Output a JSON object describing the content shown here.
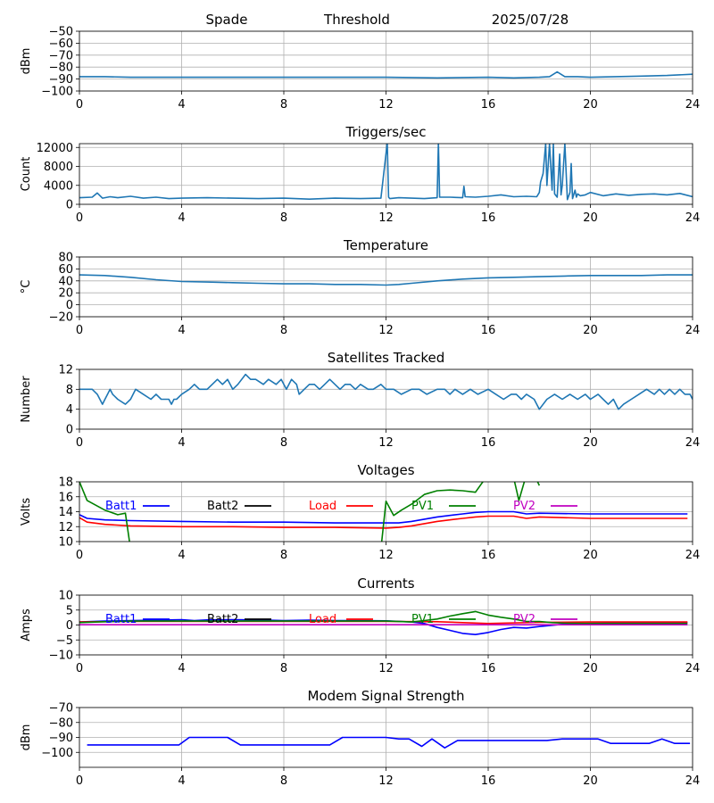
{
  "header": {
    "station": "Spade",
    "mode": "Threshold",
    "date": "2025/07/28"
  },
  "colors": {
    "default": "#1f77b4",
    "batt1": "#0000ff",
    "batt2": "#000000",
    "load": "#ff0000",
    "pv1": "#008000",
    "pv2": "#c000c0"
  },
  "chart_data": [
    {
      "id": "noise",
      "type": "line",
      "title": "",
      "ylabel": "dBm",
      "xlim": [
        0,
        24
      ],
      "ylim": [
        -100,
        -50
      ],
      "xticks": [
        0,
        4,
        8,
        12,
        16,
        20,
        24
      ],
      "yticks": [
        -50,
        -60,
        -70,
        -80,
        -90,
        -100
      ],
      "grid": true,
      "series": [
        {
          "color": "#1f77b4",
          "x": [
            0,
            1,
            2,
            3,
            4,
            6,
            8,
            10,
            12,
            14,
            16,
            17,
            18,
            18.4,
            18.7,
            19,
            19.5,
            20,
            21,
            22,
            23,
            24
          ],
          "y": [
            -88,
            -88,
            -88.5,
            -88.5,
            -88.5,
            -88.5,
            -88.5,
            -88.5,
            -88.5,
            -89,
            -88.5,
            -89,
            -88.5,
            -88,
            -84,
            -88,
            -88,
            -88.5,
            -88,
            -87.5,
            -87,
            -86
          ]
        }
      ]
    },
    {
      "id": "triggers",
      "type": "line",
      "title": "Triggers/sec",
      "ylabel": "Count",
      "xlim": [
        0,
        24
      ],
      "ylim": [
        0,
        12800
      ],
      "xticks": [
        0,
        4,
        8,
        12,
        16,
        20,
        24
      ],
      "yticks": [
        0,
        4000,
        8000,
        12000
      ],
      "grid": true,
      "series": [
        {
          "color": "#1f77b4",
          "x": [
            0,
            0.5,
            0.7,
            0.9,
            1.2,
            1.5,
            2,
            2.5,
            3,
            3.5,
            4,
            5,
            6,
            7,
            8,
            9,
            10,
            11,
            11.8,
            12.05,
            12.1,
            12.15,
            12.5,
            13,
            13.5,
            14,
            14.05,
            14.1,
            14.5,
            15,
            15.05,
            15.1,
            15.5,
            16,
            16.5,
            17,
            17.5,
            17.9,
            18.0,
            18.05,
            18.15,
            18.25,
            18.3,
            18.4,
            18.5,
            18.55,
            18.6,
            18.7,
            18.8,
            18.85,
            18.9,
            19.0,
            19.1,
            19.2,
            19.25,
            19.3,
            19.4,
            19.45,
            19.5,
            19.6,
            19.8,
            20,
            20.5,
            21,
            21.5,
            22,
            22.5,
            23,
            23.5,
            24
          ],
          "y": [
            1400,
            1500,
            2400,
            1300,
            1600,
            1400,
            1700,
            1300,
            1500,
            1200,
            1300,
            1400,
            1300,
            1200,
            1300,
            1100,
            1300,
            1200,
            1300,
            13000,
            1500,
            1200,
            1400,
            1300,
            1200,
            1400,
            13000,
            1500,
            1500,
            1400,
            3800,
            1600,
            1500,
            1700,
            2000,
            1600,
            1700,
            1600,
            2500,
            4700,
            6500,
            12800,
            4000,
            12800,
            3000,
            12800,
            2200,
            1500,
            10600,
            2000,
            4000,
            12800,
            1000,
            2500,
            8600,
            1200,
            3000,
            1500,
            2200,
            1800,
            2000,
            2500,
            1800,
            2200,
            1900,
            2100,
            2200,
            2000,
            2300,
            1600
          ]
        }
      ]
    },
    {
      "id": "temperature",
      "type": "line",
      "title": "Temperature",
      "ylabel": "°C",
      "xlim": [
        0,
        24
      ],
      "ylim": [
        -20,
        80
      ],
      "xticks": [
        0,
        4,
        8,
        12,
        16,
        20,
        24
      ],
      "yticks": [
        -20,
        0,
        20,
        40,
        60,
        80
      ],
      "grid": true,
      "series": [
        {
          "color": "#1f77b4",
          "x": [
            0,
            1,
            2,
            3,
            4,
            5,
            6,
            7,
            8,
            9,
            10,
            11,
            12,
            12.5,
            13,
            14,
            15,
            16,
            17,
            18,
            19,
            20,
            21,
            22,
            23,
            24
          ],
          "y": [
            50,
            49,
            46,
            42,
            39,
            38,
            37,
            36,
            35,
            35,
            34,
            34,
            33,
            34,
            36,
            40,
            43,
            45,
            46,
            47,
            48,
            49,
            49,
            49,
            50,
            50
          ]
        }
      ]
    },
    {
      "id": "satellites",
      "type": "line",
      "title": "Satellites Tracked",
      "ylabel": "Number",
      "xlim": [
        0,
        24
      ],
      "ylim": [
        0,
        12
      ],
      "xticks": [
        0,
        4,
        8,
        12,
        16,
        20,
        24
      ],
      "yticks": [
        0,
        4,
        8,
        12
      ],
      "grid": true,
      "series": [
        {
          "color": "#1f77b4",
          "x": [
            0,
            0.5,
            0.7,
            0.8,
            0.9,
            1,
            1.1,
            1.2,
            1.3,
            1.5,
            1.8,
            2.0,
            2.2,
            2.5,
            2.8,
            3.0,
            3.2,
            3.5,
            3.6,
            3.7,
            3.8,
            4.0,
            4.3,
            4.5,
            4.7,
            5.0,
            5.2,
            5.4,
            5.6,
            5.8,
            6.0,
            6.2,
            6.5,
            6.7,
            6.9,
            7.2,
            7.4,
            7.7,
            7.9,
            8.1,
            8.3,
            8.5,
            8.6,
            8.8,
            9.0,
            9.2,
            9.4,
            9.6,
            9.8,
            10.0,
            10.2,
            10.4,
            10.6,
            10.8,
            11.0,
            11.3,
            11.5,
            11.8,
            12.0,
            12.3,
            12.6,
            13.0,
            13.3,
            13.6,
            14.0,
            14.3,
            14.5,
            14.7,
            15.0,
            15.3,
            15.6,
            16.0,
            16.3,
            16.6,
            16.9,
            17.1,
            17.3,
            17.5,
            17.8,
            18.0,
            18.3,
            18.6,
            18.9,
            19.2,
            19.5,
            19.8,
            20.0,
            20.3,
            20.5,
            20.7,
            20.9,
            21.1,
            21.3,
            21.6,
            21.9,
            22.2,
            22.5,
            22.7,
            22.9,
            23.1,
            23.3,
            23.5,
            23.7,
            23.9,
            24
          ],
          "y": [
            8,
            8,
            7,
            6,
            5,
            6,
            7,
            8,
            7,
            6,
            5,
            6,
            8,
            7,
            6,
            7,
            6,
            6,
            5,
            6,
            6,
            7,
            8,
            9,
            8,
            8,
            9,
            10,
            9,
            10,
            8,
            9,
            11,
            10,
            10,
            9,
            10,
            9,
            10,
            8,
            10,
            9,
            7,
            8,
            9,
            9,
            8,
            9,
            10,
            9,
            8,
            9,
            9,
            8,
            9,
            8,
            8,
            9,
            8,
            8,
            7,
            8,
            8,
            7,
            8,
            8,
            7,
            8,
            7,
            8,
            7,
            8,
            7,
            6,
            7,
            7,
            6,
            7,
            6,
            4,
            6,
            7,
            6,
            7,
            6,
            7,
            6,
            7,
            6,
            5,
            6,
            4,
            5,
            6,
            7,
            8,
            7,
            8,
            7,
            8,
            7,
            8,
            7,
            7,
            6
          ]
        }
      ]
    },
    {
      "id": "voltages",
      "type": "line",
      "title": "Voltages",
      "ylabel": "Volts",
      "xlim": [
        0,
        24
      ],
      "ylim": [
        10,
        18
      ],
      "xticks": [
        0,
        4,
        8,
        12,
        16,
        20,
        24
      ],
      "yticks": [
        10,
        12,
        14,
        16,
        18
      ],
      "grid": true,
      "series": [
        {
          "name": "Batt1",
          "color": "#0000ff",
          "x": [
            0,
            0.3,
            1,
            2,
            4,
            6,
            8,
            10,
            12,
            12.5,
            13,
            14,
            15,
            15.5,
            16,
            17,
            17.5,
            18,
            20,
            22,
            23.8
          ],
          "y": [
            13.6,
            13.1,
            12.9,
            12.8,
            12.7,
            12.6,
            12.6,
            12.5,
            12.5,
            12.5,
            12.7,
            13.3,
            13.7,
            13.9,
            14.0,
            14.0,
            13.7,
            13.8,
            13.7,
            13.7,
            13.7
          ]
        },
        {
          "name": "Batt2",
          "color": "#000000",
          "x": [],
          "y": []
        },
        {
          "name": "Load",
          "color": "#ff0000",
          "x": [
            0,
            0.3,
            1,
            2,
            4,
            6,
            8,
            10,
            12,
            12.5,
            13,
            14,
            15,
            15.5,
            16,
            17,
            17.5,
            18,
            20,
            22,
            23.8
          ],
          "y": [
            13.2,
            12.6,
            12.3,
            12.1,
            12.0,
            12.0,
            11.9,
            11.9,
            11.8,
            11.9,
            12.1,
            12.7,
            13.1,
            13.3,
            13.4,
            13.4,
            13.1,
            13.3,
            13.1,
            13.1,
            13.1
          ]
        },
        {
          "name": "PV1",
          "color": "#008000",
          "x": [
            0,
            0.3,
            1,
            1.5,
            1.8,
            2.0,
            11.8,
            12.0,
            12.3,
            12.6,
            13,
            13.5,
            14,
            14.5,
            15,
            15.5,
            16.0,
            16.5,
            17.0,
            17.2,
            17.5,
            17.8,
            18.0
          ],
          "y": [
            18,
            15.5,
            14.2,
            13.6,
            13.8,
            9.0,
            9.0,
            15.4,
            13.5,
            14.2,
            15.0,
            16.3,
            16.8,
            16.9,
            16.8,
            16.6,
            19.0,
            19.0,
            18.5,
            15.5,
            19.0,
            19.0,
            17.5
          ]
        },
        {
          "name": "PV2",
          "color": "#c000c0",
          "x": [],
          "y": []
        }
      ]
    },
    {
      "id": "currents",
      "type": "line",
      "title": "Currents",
      "ylabel": "Amps",
      "xlim": [
        0,
        24
      ],
      "ylim": [
        -10,
        10
      ],
      "xticks": [
        0,
        4,
        8,
        12,
        16,
        20,
        24
      ],
      "yticks": [
        -10,
        -5,
        0,
        5,
        10
      ],
      "grid": true,
      "series": [
        {
          "name": "Batt1",
          "color": "#0000ff",
          "x": [
            0,
            1,
            2,
            3,
            4,
            4.5,
            5,
            6,
            7,
            8,
            9,
            10,
            11,
            12,
            13,
            13.5,
            14,
            14.5,
            15,
            15.5,
            16,
            16.5,
            17,
            17.5,
            18,
            19,
            20,
            22,
            23.8
          ],
          "y": [
            1.0,
            1.3,
            1.5,
            1.6,
            1.8,
            1.5,
            1.7,
            1.8,
            1.7,
            1.5,
            1.6,
            1.5,
            1.5,
            1.4,
            1.0,
            0.5,
            -0.8,
            -1.8,
            -2.8,
            -3.2,
            -2.5,
            -1.5,
            -0.8,
            -1.0,
            -0.5,
            0.3,
            0.6,
            0.8,
            0.8
          ]
        },
        {
          "name": "Batt2",
          "color": "#000000",
          "x": [],
          "y": []
        },
        {
          "name": "Load",
          "color": "#ff0000",
          "x": [
            0,
            2,
            4,
            6,
            8,
            10,
            12,
            14,
            15,
            16,
            18,
            20,
            22,
            23.8
          ],
          "y": [
            1.0,
            1.2,
            1.2,
            1.2,
            1.2,
            1.2,
            1.2,
            1.1,
            0.8,
            0.5,
            0.9,
            1.0,
            1.0,
            1.0
          ]
        },
        {
          "name": "PV1",
          "color": "#008000",
          "x": [
            0,
            1,
            2,
            3,
            4,
            5,
            6,
            7,
            8,
            9,
            10,
            11,
            12,
            13,
            13.5,
            14,
            14.5,
            15,
            15.5,
            16,
            16.5,
            17,
            17.5,
            18,
            18.5,
            19,
            20,
            22,
            23.8
          ],
          "y": [
            0.8,
            1.1,
            1.3,
            1.3,
            1.3,
            1.3,
            1.3,
            1.3,
            1.3,
            1.3,
            1.3,
            1.3,
            1.3,
            1.0,
            1.5,
            2.0,
            3.0,
            3.8,
            4.5,
            3.3,
            2.6,
            2.0,
            1.2,
            1.2,
            0.8,
            0.6,
            0.5,
            0.5,
            0.5
          ]
        },
        {
          "name": "PV2",
          "color": "#c000c0",
          "x": [
            0,
            4,
            8,
            12,
            16,
            20,
            23.8
          ],
          "y": [
            0.1,
            0.1,
            0.1,
            0.1,
            0.1,
            0.1,
            0.1
          ]
        }
      ]
    },
    {
      "id": "modem",
      "type": "line",
      "title": "Modem Signal Strength",
      "ylabel": "dBm",
      "xlim": [
        0,
        24
      ],
      "ylim": [
        -110,
        -70
      ],
      "xticks": [
        0,
        4,
        8,
        12,
        16,
        20,
        24
      ],
      "yticks": [
        -70,
        -80,
        -90,
        -100
      ],
      "grid": true,
      "series": [
        {
          "color": "#0000ff",
          "x": [
            0.3,
            1.2,
            2.0,
            2.9,
            3.9,
            4.3,
            4.9,
            5.8,
            6.3,
            7.1,
            8.0,
            8.9,
            9.8,
            10.3,
            11.1,
            12.0,
            12.5,
            12.9,
            13.4,
            13.8,
            14.3,
            14.8,
            15.7,
            16.5,
            17.5,
            18.3,
            18.9,
            19.6,
            20.3,
            20.8,
            21.5,
            22.3,
            22.8,
            23.3,
            23.9
          ],
          "y": [
            -95,
            -95,
            -95,
            -95,
            -95,
            -90,
            -90,
            -90,
            -95,
            -95,
            -95,
            -95,
            -95,
            -90,
            -90,
            -90,
            -91,
            -91,
            -96,
            -91,
            -97,
            -92,
            -92,
            -92,
            -92,
            -92,
            -91,
            -91,
            -91,
            -94,
            -94,
            -94,
            -91,
            -94,
            -94
          ]
        }
      ]
    }
  ]
}
